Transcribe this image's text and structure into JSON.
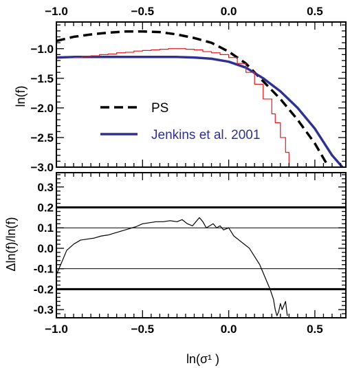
{
  "chart_data": [
    {
      "type": "line",
      "title": "",
      "xlabel": "",
      "ylabel": "ln(f)",
      "xlim": [
        -1.0,
        0.68
      ],
      "ylim": [
        -3.0,
        -0.55
      ],
      "x_ticks": [
        -1.0,
        -0.5,
        0.0,
        0.5
      ],
      "x_tick_labels": [
        "−1.0",
        "−0.5",
        "0.0",
        "0.5"
      ],
      "y_ticks": [
        -1.0,
        -1.5,
        -2.0,
        -2.5,
        -3.0
      ],
      "y_tick_labels": [
        "−1.0",
        "−1.5",
        "−2.0",
        "−2.5",
        "−3.0"
      ],
      "legend": {
        "location": "lower-left",
        "entries": [
          {
            "label": "PS",
            "series": "PS"
          },
          {
            "label": "Jenkins et al. 2001",
            "series": "Jenkins et al. 2001"
          }
        ]
      },
      "series": [
        {
          "name": "PS",
          "color": "#000000",
          "style": "dashed",
          "x": [
            -1.0,
            -0.9,
            -0.8,
            -0.7,
            -0.6,
            -0.5,
            -0.4,
            -0.3,
            -0.2,
            -0.1,
            0.0,
            0.1,
            0.2,
            0.3,
            0.4,
            0.5,
            0.58
          ],
          "y": [
            -0.87,
            -0.8,
            -0.76,
            -0.73,
            -0.71,
            -0.71,
            -0.72,
            -0.76,
            -0.82,
            -0.9,
            -1.05,
            -1.25,
            -1.55,
            -1.85,
            -2.2,
            -2.6,
            -3.0
          ]
        },
        {
          "name": "Jenkins et al. 2001",
          "color": "#2e3192",
          "style": "solid",
          "x": [
            -1.0,
            -0.9,
            -0.8,
            -0.7,
            -0.6,
            -0.5,
            -0.4,
            -0.3,
            -0.2,
            -0.1,
            0.0,
            0.1,
            0.2,
            0.3,
            0.4,
            0.5,
            0.6,
            0.66
          ],
          "y": [
            -1.15,
            -1.14,
            -1.14,
            -1.14,
            -1.14,
            -1.14,
            -1.14,
            -1.14,
            -1.15,
            -1.17,
            -1.22,
            -1.32,
            -1.5,
            -1.72,
            -2.0,
            -2.35,
            -2.8,
            -3.0
          ]
        },
        {
          "name": "",
          "color": "#e8151b",
          "style": "steps",
          "x": [
            -0.9,
            -0.85,
            -0.8,
            -0.75,
            -0.7,
            -0.65,
            -0.6,
            -0.55,
            -0.5,
            -0.45,
            -0.4,
            -0.35,
            -0.3,
            -0.25,
            -0.2,
            -0.15,
            -0.1,
            -0.05,
            0.0,
            0.05,
            0.1,
            0.15,
            0.2,
            0.25,
            0.27,
            0.3,
            0.33,
            0.35
          ],
          "y": [
            -1.15,
            -1.13,
            -1.12,
            -1.1,
            -1.09,
            -1.07,
            -1.06,
            -1.04,
            -1.03,
            -1.02,
            -1.01,
            -1.0,
            -1.0,
            -1.01,
            -1.02,
            -1.05,
            -1.07,
            -1.1,
            -1.15,
            -1.25,
            -1.4,
            -1.6,
            -1.85,
            -2.1,
            -2.25,
            -2.5,
            -2.75,
            -3.0
          ]
        }
      ]
    },
    {
      "type": "line",
      "title": "",
      "xlabel": "ln(σ¹ )",
      "ylabel": "Δln(f)/ln(f)",
      "xlim": [
        -1.0,
        0.68
      ],
      "ylim": [
        -0.34,
        0.37
      ],
      "x_ticks": [
        -1.0,
        -0.5,
        0.0,
        0.5
      ],
      "x_tick_labels": [
        "−1.0",
        "−0.5",
        "0.0",
        "0.5"
      ],
      "y_ticks": [
        0.3,
        0.2,
        0.1,
        0.0,
        -0.1,
        -0.2,
        -0.3
      ],
      "y_tick_labels": [
        "0.3",
        "0.2",
        "0.1",
        "0.0",
        "-0.1",
        "-0.2",
        "-0.3"
      ],
      "reference_lines": [
        {
          "y": 0.2,
          "weight": "thick"
        },
        {
          "y": 0.1,
          "weight": "thin"
        },
        {
          "y": -0.1,
          "weight": "thin"
        },
        {
          "y": -0.2,
          "weight": "thick"
        }
      ],
      "series": [
        {
          "name": "",
          "color": "#000000",
          "style": "solid",
          "x": [
            -1.0,
            -0.97,
            -0.94,
            -0.9,
            -0.86,
            -0.82,
            -0.78,
            -0.74,
            -0.7,
            -0.66,
            -0.62,
            -0.58,
            -0.54,
            -0.5,
            -0.46,
            -0.42,
            -0.38,
            -0.34,
            -0.3,
            -0.27,
            -0.24,
            -0.21,
            -0.19,
            -0.17,
            -0.15,
            -0.13,
            -0.11,
            -0.09,
            -0.07,
            -0.05,
            -0.03,
            0.0,
            0.03,
            0.06,
            0.09,
            0.12,
            0.15,
            0.18,
            0.2,
            0.22,
            0.24,
            0.26,
            0.27,
            0.28,
            0.29,
            0.3,
            0.31,
            0.32,
            0.33,
            0.34
          ],
          "y": [
            -0.13,
            -0.07,
            -0.01,
            0.02,
            0.04,
            0.045,
            0.05,
            0.06,
            0.065,
            0.075,
            0.085,
            0.095,
            0.105,
            0.12,
            0.125,
            0.13,
            0.13,
            0.135,
            0.13,
            0.14,
            0.12,
            0.11,
            0.13,
            0.15,
            0.13,
            0.1,
            0.11,
            0.12,
            0.1,
            0.11,
            0.09,
            0.1,
            0.06,
            0.04,
            0.02,
            0.0,
            -0.04,
            -0.08,
            -0.12,
            -0.16,
            -0.2,
            -0.25,
            -0.3,
            -0.33,
            -0.31,
            -0.27,
            -0.3,
            -0.28,
            -0.26,
            -0.33
          ]
        }
      ]
    }
  ]
}
